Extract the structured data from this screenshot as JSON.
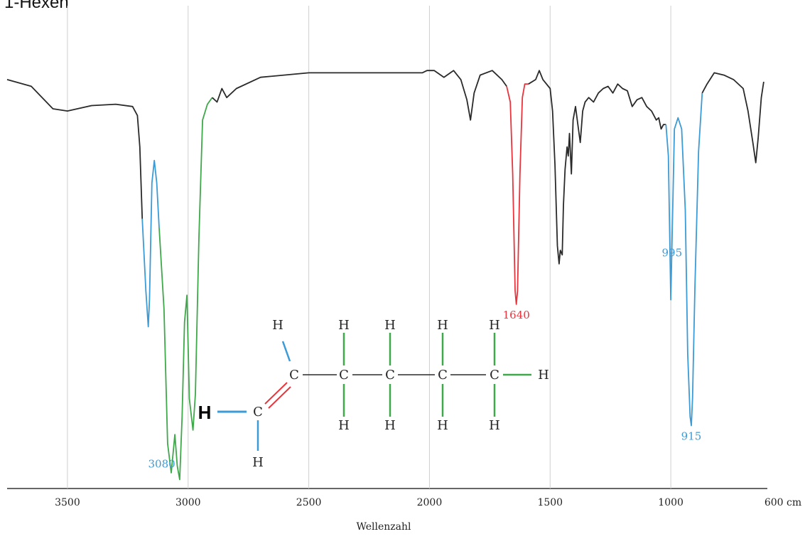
{
  "title": "1-Hexen",
  "chart_data": {
    "type": "line",
    "xlabel": "Wellenzahl",
    "xunit": "cm",
    "x_reversed": true,
    "xlim": [
      3750,
      600
    ],
    "ylim": [
      0,
      100
    ],
    "grid": true,
    "x_ticks": [
      {
        "value": 3500,
        "label": "3500"
      },
      {
        "value": 3000,
        "label": "3000"
      },
      {
        "value": 2500,
        "label": "2500"
      },
      {
        "value": 2000,
        "label": "2000"
      },
      {
        "value": 1500,
        "label": "1500"
      },
      {
        "value": 1000,
        "label": "1000"
      },
      {
        "value": 600,
        "label": "600 cm"
      }
    ],
    "x_grid": [
      3500,
      3000,
      2500,
      2000,
      1500,
      1000
    ],
    "series": [
      {
        "color": "#2a2a2a",
        "points": [
          [
            3750,
            91
          ],
          [
            3650,
            89.5
          ],
          [
            3560,
            84.5
          ],
          [
            3500,
            84
          ],
          [
            3400,
            85.2
          ],
          [
            3300,
            85.5
          ],
          [
            3230,
            85
          ],
          [
            3210,
            83
          ],
          [
            3200,
            76
          ],
          [
            3190,
            60
          ]
        ]
      },
      {
        "color": "#3b9bd6",
        "points": [
          [
            3190,
            60
          ],
          [
            3175,
            44
          ],
          [
            3165,
            36
          ],
          [
            3160,
            42
          ],
          [
            3150,
            68
          ],
          [
            3140,
            73
          ],
          [
            3130,
            68
          ],
          [
            3120,
            58
          ]
        ]
      },
      {
        "color": "#3fa84a",
        "points": [
          [
            3120,
            58
          ],
          [
            3100,
            40
          ],
          [
            3085,
            10
          ],
          [
            3070,
            3.5
          ],
          [
            3055,
            12
          ],
          [
            3045,
            5
          ],
          [
            3035,
            2
          ],
          [
            3025,
            16
          ],
          [
            3015,
            37
          ],
          [
            3005,
            43
          ],
          [
            2995,
            20
          ],
          [
            2980,
            13
          ],
          [
            2970,
            21
          ],
          [
            2955,
            56
          ],
          [
            2940,
            82
          ],
          [
            2920,
            85.5
          ],
          [
            2900,
            87
          ]
        ]
      },
      {
        "color": "#2a2a2a",
        "points": [
          [
            2900,
            87
          ],
          [
            2880,
            86
          ],
          [
            2860,
            89
          ],
          [
            2840,
            87
          ],
          [
            2800,
            89
          ],
          [
            2700,
            91.5
          ],
          [
            2500,
            92.5
          ],
          [
            2300,
            92.5
          ],
          [
            2100,
            92.5
          ],
          [
            2030,
            92.5
          ],
          [
            2010,
            93
          ],
          [
            1980,
            93
          ],
          [
            1940,
            91.5
          ],
          [
            1900,
            93
          ],
          [
            1870,
            91
          ],
          [
            1845,
            86.5
          ],
          [
            1830,
            82
          ],
          [
            1815,
            88
          ],
          [
            1790,
            92
          ],
          [
            1740,
            93
          ],
          [
            1700,
            91
          ],
          [
            1680,
            89.5
          ]
        ]
      },
      {
        "color": "#e8343c",
        "points": [
          [
            1680,
            89.5
          ],
          [
            1665,
            86
          ],
          [
            1655,
            70
          ],
          [
            1645,
            44
          ],
          [
            1640,
            41
          ],
          [
            1635,
            44
          ],
          [
            1625,
            70
          ],
          [
            1615,
            87
          ],
          [
            1605,
            90
          ],
          [
            1590,
            90
          ]
        ]
      },
      {
        "color": "#2a2a2a",
        "points": [
          [
            1590,
            90
          ],
          [
            1560,
            91
          ],
          [
            1545,
            93
          ],
          [
            1530,
            91
          ],
          [
            1500,
            89
          ],
          [
            1490,
            84
          ],
          [
            1480,
            72
          ],
          [
            1470,
            54
          ],
          [
            1463,
            50
          ],
          [
            1458,
            53
          ],
          [
            1450,
            52
          ],
          [
            1445,
            63
          ],
          [
            1438,
            71
          ],
          [
            1430,
            76
          ],
          [
            1425,
            74
          ],
          [
            1420,
            79
          ],
          [
            1412,
            70
          ],
          [
            1405,
            82
          ],
          [
            1395,
            85
          ],
          [
            1385,
            81
          ],
          [
            1375,
            77
          ],
          [
            1365,
            84
          ],
          [
            1355,
            86
          ],
          [
            1340,
            87
          ],
          [
            1320,
            86
          ],
          [
            1300,
            88
          ],
          [
            1280,
            89
          ],
          [
            1260,
            89.5
          ],
          [
            1240,
            88
          ],
          [
            1220,
            90
          ],
          [
            1200,
            89
          ],
          [
            1180,
            88.5
          ],
          [
            1160,
            85
          ],
          [
            1140,
            86.5
          ],
          [
            1120,
            87
          ],
          [
            1100,
            85
          ],
          [
            1080,
            84
          ],
          [
            1060,
            82
          ],
          [
            1050,
            82.5
          ],
          [
            1040,
            80
          ],
          [
            1030,
            81
          ],
          [
            1020,
            81
          ]
        ]
      },
      {
        "color": "#3b9bd6",
        "points": [
          [
            1020,
            81
          ],
          [
            1010,
            74
          ],
          [
            1000,
            42
          ],
          [
            993,
            60
          ],
          [
            985,
            80
          ],
          [
            970,
            82.5
          ],
          [
            955,
            80
          ],
          [
            940,
            62
          ],
          [
            930,
            30
          ],
          [
            920,
            16
          ],
          [
            915,
            14
          ],
          [
            910,
            20
          ],
          [
            900,
            45
          ],
          [
            885,
            75
          ],
          [
            870,
            88
          ]
        ]
      },
      {
        "color": "#2a2a2a",
        "points": [
          [
            870,
            88
          ],
          [
            850,
            90
          ],
          [
            820,
            92.5
          ],
          [
            780,
            92
          ],
          [
            740,
            91
          ],
          [
            700,
            89
          ],
          [
            680,
            84
          ],
          [
            660,
            77
          ],
          [
            648,
            72.5
          ],
          [
            638,
            78
          ],
          [
            625,
            87
          ],
          [
            615,
            90.5
          ]
        ]
      }
    ],
    "annotations": [
      {
        "label": "3080",
        "x": 3080,
        "color": "#3b9bd6"
      },
      {
        "label": "1640",
        "x": 1640,
        "color": "#e8343c"
      },
      {
        "label": "995",
        "x": 995,
        "color": "#3b9bd6"
      },
      {
        "label": "915",
        "x": 915,
        "color": "#3b9bd6"
      }
    ]
  },
  "structure": {
    "atoms": {
      "h_top_1": "H",
      "h_top_2": "H",
      "h_top_3": "H",
      "h_top_4": "H",
      "h_top_5": "H",
      "c1": "C",
      "c2": "C",
      "c3": "C",
      "c4": "C",
      "c5": "C",
      "c_term": "C",
      "h_end": "H",
      "h_bot_2": "H",
      "h_bot_3": "H",
      "h_bot_4": "H",
      "h_bot_5": "H",
      "h_bold": "H",
      "h_vinyl_bottom": "H"
    },
    "bond_colors": {
      "vinyl": "#3b9bd6",
      "alkane": "#3fa84a",
      "double": "#e8343c",
      "chain": "#2a2a2a"
    }
  }
}
